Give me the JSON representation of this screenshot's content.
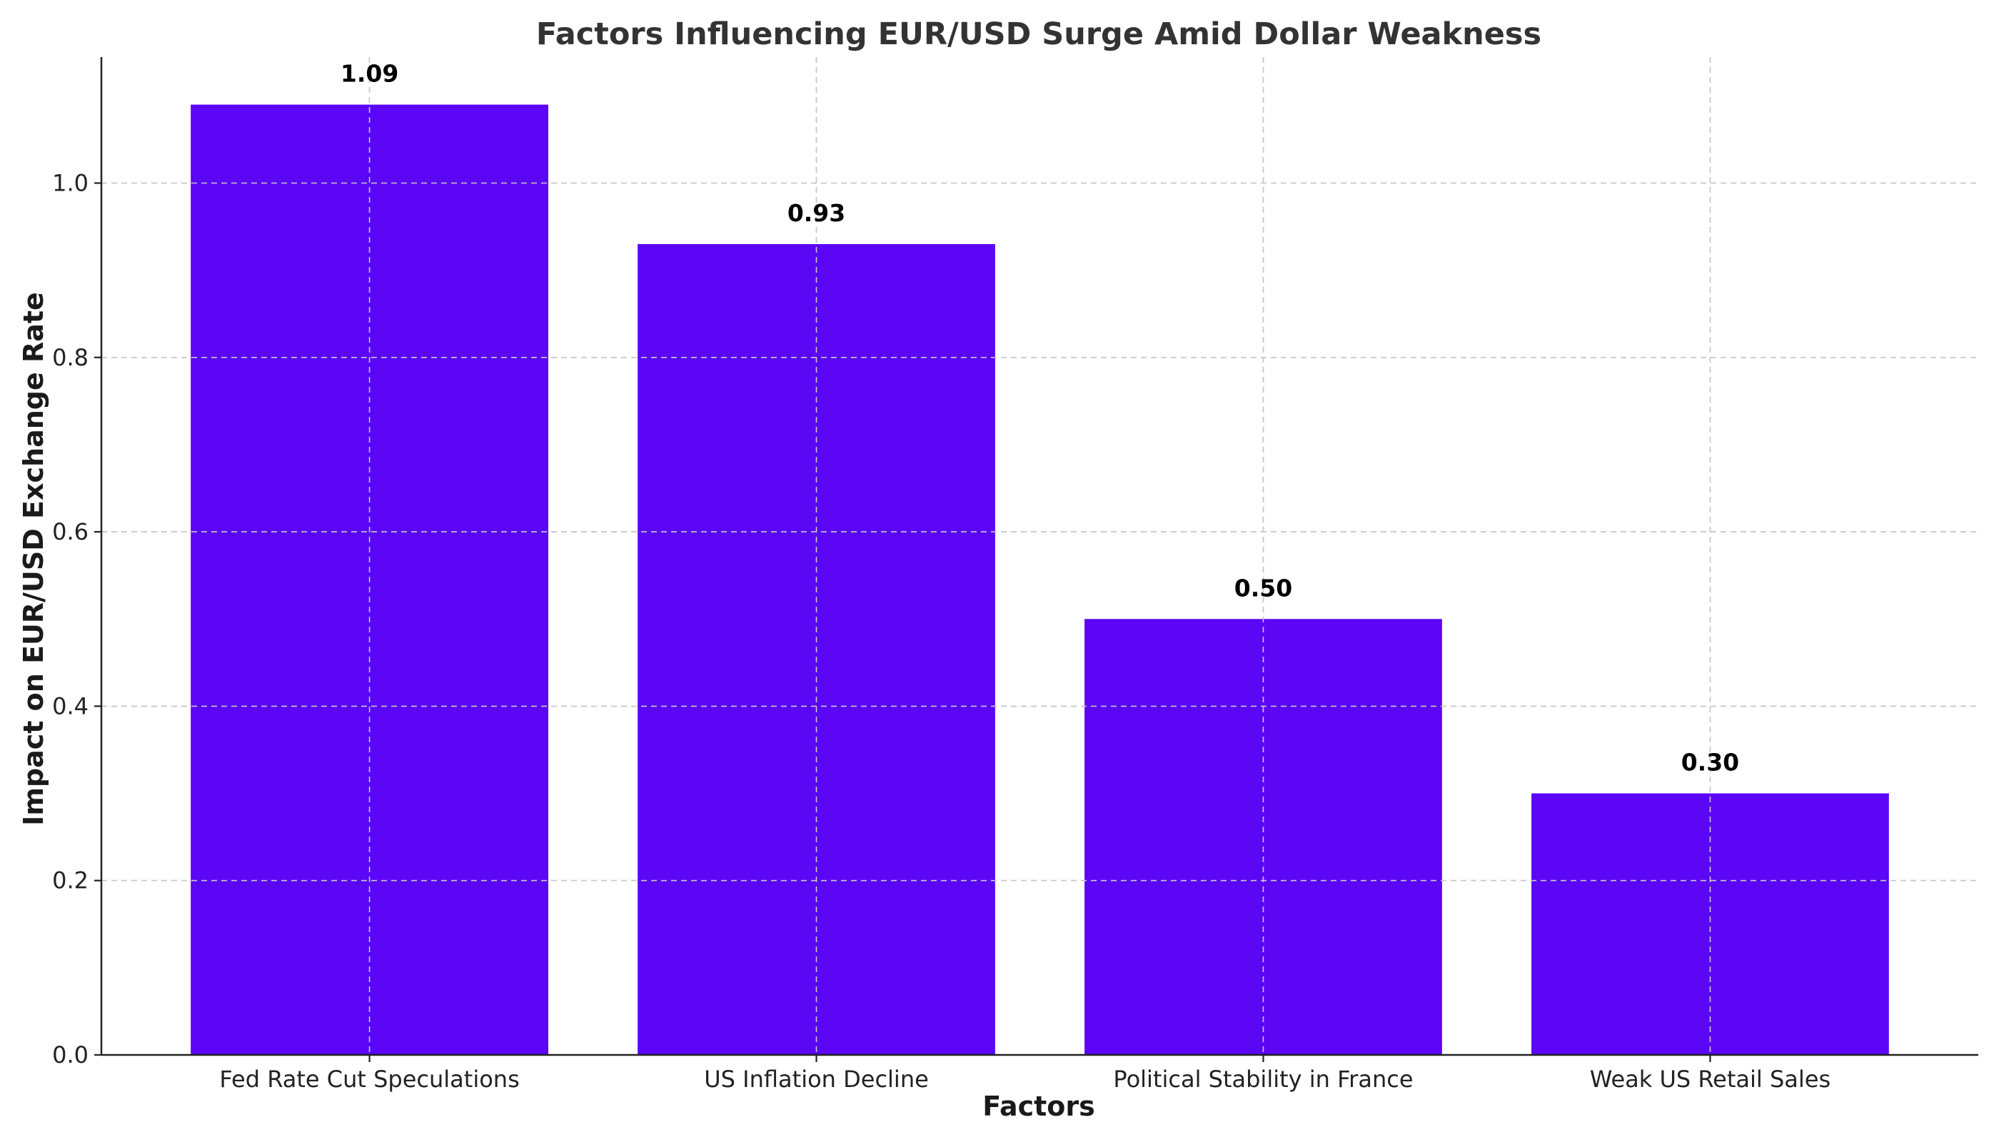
{
  "chart_data": {
    "type": "bar",
    "title": "Factors Influencing EUR/USD Surge Amid Dollar Weakness",
    "xlabel": "Factors",
    "ylabel": "Impact on EUR/USD Exchange Rate",
    "categories": [
      "Fed Rate Cut Speculations",
      "US Inflation Decline",
      "Political Stability in France",
      "Weak US Retail Sales"
    ],
    "values": [
      1.09,
      0.93,
      0.5,
      0.3
    ],
    "data_labels": [
      "1.09",
      "0.93",
      "0.50",
      "0.30"
    ],
    "yticks": [
      0.0,
      0.2,
      0.4,
      0.6,
      0.8,
      1.0
    ],
    "ytick_labels": [
      "0.0",
      "0.2",
      "0.4",
      "0.6",
      "0.8",
      "1.0"
    ],
    "ylim": [
      0,
      1.1445
    ],
    "grid": true,
    "bar_color": "#5b06f5"
  }
}
